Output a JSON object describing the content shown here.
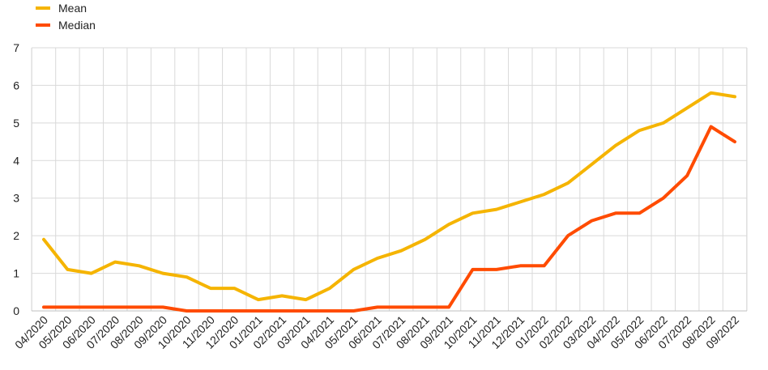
{
  "chart_data": {
    "type": "line",
    "title": "",
    "xlabel": "",
    "ylabel": "",
    "categories": [
      "04/2020",
      "05/2020",
      "06/2020",
      "07/2020",
      "08/2020",
      "09/2020",
      "10/2020",
      "11/2020",
      "12/2020",
      "01/2021",
      "02/2021",
      "03/2021",
      "04/2021",
      "05/2021",
      "06/2021",
      "07/2021",
      "08/2021",
      "09/2021",
      "10/2021",
      "11/2021",
      "12/2021",
      "01/2022",
      "02/2022",
      "03/2022",
      "04/2022",
      "05/2022",
      "06/2022",
      "07/2022",
      "08/2022",
      "09/2022"
    ],
    "ylim": [
      0,
      7
    ],
    "yticks": [
      "0",
      "1",
      "2",
      "3",
      "4",
      "5",
      "6",
      "7"
    ],
    "grid": true,
    "legend_position": "top-left",
    "series": [
      {
        "name": "Mean",
        "color": "#f5b400",
        "values": [
          1.9,
          1.1,
          1.0,
          1.3,
          1.2,
          1.0,
          0.9,
          0.6,
          0.6,
          0.3,
          0.4,
          0.3,
          0.6,
          1.1,
          1.4,
          1.6,
          1.9,
          2.3,
          2.6,
          2.7,
          2.9,
          3.1,
          3.4,
          3.9,
          4.4,
          4.8,
          5.0,
          5.4,
          5.8,
          5.7
        ]
      },
      {
        "name": "Median",
        "color": "#ff4b00",
        "values": [
          0.1,
          0.1,
          0.1,
          0.1,
          0.1,
          0.1,
          0.0,
          0.0,
          0.0,
          0.0,
          0.0,
          0.0,
          0.0,
          0.0,
          0.1,
          0.1,
          0.1,
          0.1,
          1.1,
          1.1,
          1.2,
          1.2,
          2.0,
          2.4,
          2.6,
          2.6,
          3.0,
          3.6,
          4.9,
          4.5
        ]
      }
    ]
  }
}
